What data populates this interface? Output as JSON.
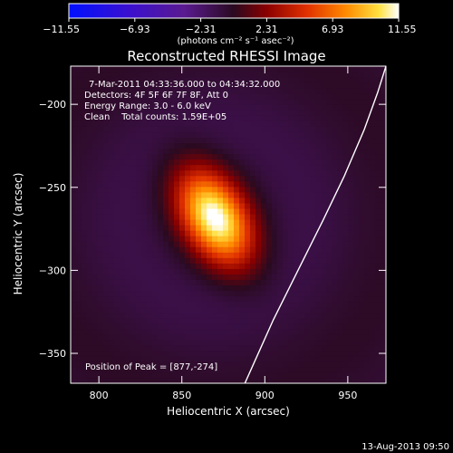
{
  "chart_data": {
    "type": "heatmap",
    "title": "Reconstructed RHESSI Image",
    "xlabel": "Heliocentric X (arcsec)",
    "ylabel": "Heliocentric Y (arcsec)",
    "xlim": [
      783,
      973
    ],
    "ylim": [
      -368,
      -177
    ],
    "x_ticks": [
      800,
      850,
      900,
      950
    ],
    "y_ticks": [
      -200,
      -250,
      -300,
      -350
    ],
    "colorbar": {
      "min": -11.55,
      "max": 11.55,
      "ticks": [
        -11.55,
        -6.93,
        -2.31,
        2.31,
        6.93,
        11.55
      ],
      "tick_labels": [
        "−11.55",
        "−6.93",
        "−2.31",
        "2.31",
        "6.93",
        "11.55"
      ],
      "unit_label": "(photons cm⁻² s⁻¹ asec⁻²)"
    },
    "info_lines": [
      "7-Mar-2011 04:33:36.000 to 04:34:32.000",
      "Detectors: 4F 5F 6F 7F 8F, Att 0",
      "Energy Range: 3.0 - 6.0 keV",
      "Clean    Total counts: 1.59E+05"
    ],
    "peak_text": "Position of Peak = [877,-274]",
    "peak_position": [
      877,
      -274
    ],
    "peak_value": 11.55,
    "source": {
      "center": [
        870,
        -268
      ],
      "sigma_major": 22,
      "sigma_minor": 13,
      "angle_deg": 30,
      "amplitude": 11.55
    },
    "limb": {
      "x": [
        888,
        905,
        920,
        935,
        948,
        960,
        968,
        973
      ],
      "y": [
        -368,
        -330,
        -300,
        -270,
        -243,
        -215,
        -193,
        -177
      ]
    },
    "grid": false
  },
  "footer": {
    "date": "13-Aug-2013 09:50"
  },
  "colors": {
    "background": "#000000",
    "text": "#ffffff",
    "limb": "#ffffff"
  },
  "colormap": "rainbow-to-white (blue-purple-red-orange-yellow-white)"
}
